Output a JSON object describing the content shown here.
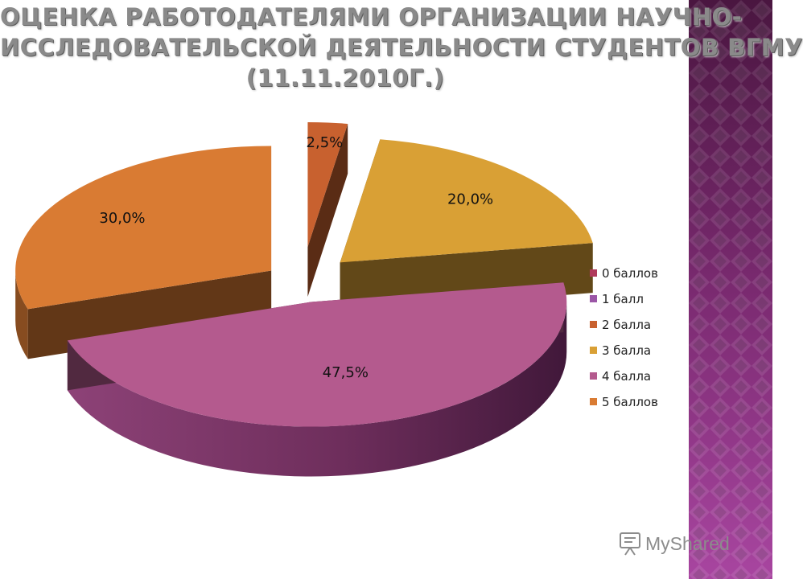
{
  "title_lines": [
    "ОЦЕНКА РАБОТОДАТЕЛЯМИ ОРГАНИЗАЦИИ НАУЧНО-",
    "ИССЛЕДОВАТЕЛЬСКОЙ ДЕЯТЕЛЬНОСТИ СТУДЕНТОВ ВГМУ",
    "(11.11.2010Г.)"
  ],
  "chart_data": {
    "type": "pie",
    "style": "3d-exploded",
    "title": "ОЦЕНКА РАБОТОДАТЕЛЯМИ ОРГАНИЗАЦИИ НАУЧНО-ИССЛЕДОВАТЕЛЬСКОЙ ДЕЯТЕЛЬНОСТИ СТУДЕНТОВ ВГМУ (11.11.2010Г.)",
    "categories": [
      "0 баллов",
      "1 балл",
      "2 балла",
      "3 балла",
      "4 балла",
      "5 баллов"
    ],
    "values": [
      0,
      0,
      2.5,
      20.0,
      47.5,
      30.0
    ],
    "data_labels": [
      "",
      "",
      "2,5%",
      "20,0%",
      "47,5%",
      "30,0%"
    ],
    "colors": [
      "#b03a5b",
      "#9b56a6",
      "#c8612f",
      "#d9a035",
      "#b45a8e",
      "#d97b33"
    ],
    "legend_position": "right"
  },
  "watermark": {
    "text": "MyShared",
    "icon": "slideshow-icon"
  },
  "decoration": {
    "pattern": "argyle-diamond",
    "colors": [
      "#4a1640",
      "#a845a0"
    ]
  }
}
